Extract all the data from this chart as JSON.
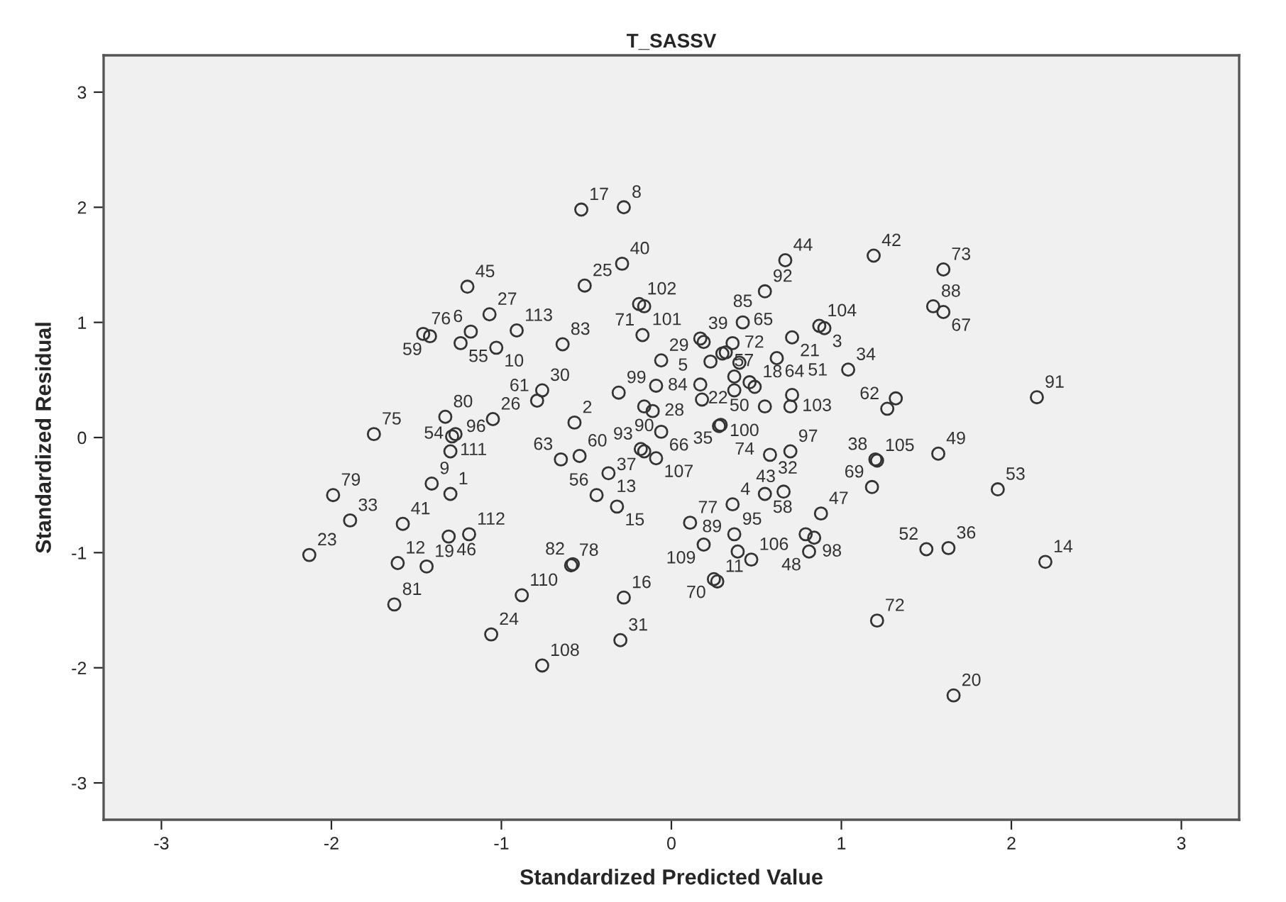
{
  "chart_data": {
    "type": "scatter",
    "title": "T_SASSV",
    "xlabel": "Standardized Predicted Value",
    "ylabel": "Standardized Residual",
    "xlim": [
      -3.34,
      3.34
    ],
    "ylim": [
      -3.32,
      3.32
    ],
    "xticks": [
      -3,
      -2,
      -1,
      0,
      1,
      2,
      3
    ],
    "yticks": [
      -3,
      -2,
      -1,
      0,
      1,
      2,
      3
    ],
    "grid": false,
    "legend": false,
    "marker": "circle",
    "series": [
      {
        "color": "#333333",
        "x": [
          -2.13,
          -1.99,
          -1.89,
          -1.75,
          -1.63,
          -1.61,
          -1.58,
          -1.46,
          -1.42,
          -1.44,
          -1.41,
          -1.33,
          -1.29,
          -1.27,
          -1.3,
          -1.3,
          -1.31,
          -1.24,
          -1.2,
          -1.19,
          -1.18,
          -1.07,
          -1.05,
          -1.06,
          -1.03,
          -0.91,
          -0.88,
          -0.76,
          -0.79,
          -0.65,
          -0.54,
          -0.37,
          -0.44,
          -0.32,
          -0.76,
          -0.64,
          -0.59,
          -0.58,
          -0.57,
          -0.53,
          -0.51,
          -0.31,
          -0.3,
          -0.29,
          -0.28,
          -0.28,
          -0.19,
          -0.16,
          -0.18,
          -0.16,
          -0.17,
          -0.16,
          -0.11,
          -0.09,
          -0.09,
          -0.06,
          -0.06,
          0.11,
          0.17,
          0.19,
          0.17,
          0.18,
          0.19,
          0.23,
          0.25,
          0.27,
          0.29,
          0.28,
          0.3,
          0.32,
          0.36,
          0.36,
          0.37,
          0.37,
          0.37,
          0.39,
          0.4,
          0.42,
          0.46,
          0.49,
          0.47,
          0.55,
          0.55,
          0.58,
          0.7,
          0.55,
          0.62,
          0.66,
          0.67,
          0.7,
          0.71,
          0.71,
          0.88,
          0.84,
          0.79,
          0.81,
          0.87,
          0.9,
          1.04,
          1.19,
          1.6,
          1.54,
          1.6,
          1.32,
          1.27,
          2.15,
          1.21,
          1.2,
          1.57,
          1.18,
          1.92,
          1.5,
          1.63,
          2.2,
          1.21,
          1.66
        ],
        "values": [
          -1.02,
          -0.5,
          -0.72,
          0.03,
          -1.45,
          -1.09,
          -0.75,
          0.9,
          0.88,
          -1.12,
          -0.4,
          0.18,
          0.01,
          0.03,
          -0.12,
          -0.49,
          -0.86,
          0.82,
          1.31,
          -0.84,
          0.92,
          1.07,
          0.16,
          -1.71,
          0.78,
          0.93,
          -1.37,
          0.41,
          0.32,
          -0.19,
          -0.16,
          -0.31,
          -0.5,
          -0.6,
          -1.98,
          0.81,
          -1.11,
          -1.1,
          0.13,
          1.98,
          1.32,
          0.39,
          -1.76,
          1.51,
          2.0,
          -1.39,
          1.16,
          1.14,
          -0.1,
          -0.12,
          0.89,
          0.27,
          0.23,
          0.45,
          -0.18,
          0.67,
          0.05,
          -0.74,
          0.86,
          0.83,
          0.46,
          0.33,
          -0.93,
          0.66,
          -1.23,
          -1.25,
          0.11,
          0.1,
          0.73,
          0.74,
          0.82,
          -0.58,
          -0.84,
          0.53,
          0.41,
          -0.99,
          0.65,
          1.0,
          0.48,
          0.44,
          -1.06,
          1.27,
          0.27,
          -0.15,
          -0.12,
          -0.49,
          0.69,
          -0.47,
          1.54,
          0.27,
          0.87,
          0.37,
          -0.66,
          -0.87,
          -0.84,
          -0.99,
          0.97,
          0.95,
          0.59,
          1.58,
          1.46,
          1.14,
          1.09,
          0.34,
          0.25,
          0.35,
          -0.2,
          -0.19,
          -0.14,
          -0.43,
          -0.45,
          -0.97,
          -0.96,
          -1.08,
          -1.59,
          -2.24
        ]
      }
    ],
    "annotations": [
      {
        "text": "23",
        "x": -2.13,
        "y": -1.02
      },
      {
        "text": "79",
        "x": -1.99,
        "y": -0.5
      },
      {
        "text": "33",
        "x": -1.89,
        "y": -0.72
      },
      {
        "text": "75",
        "x": -1.75,
        "y": 0.03
      },
      {
        "text": "81",
        "x": -1.63,
        "y": -1.45
      },
      {
        "text": "12",
        "x": -1.61,
        "y": -1.09
      },
      {
        "text": "41",
        "x": -1.58,
        "y": -0.75
      },
      {
        "text": "76",
        "x": -1.46,
        "y": 0.9
      },
      {
        "text": "59",
        "x": -1.42,
        "y": 0.88
      },
      {
        "text": "19",
        "x": -1.44,
        "y": -1.12
      },
      {
        "text": "9",
        "x": -1.41,
        "y": -0.4
      },
      {
        "text": "80",
        "x": -1.33,
        "y": 0.18
      },
      {
        "text": "111",
        "x": -1.29,
        "y": 0.01
      },
      {
        "text": "54",
        "x": -1.27,
        "y": 0.03
      },
      {
        "text": "96",
        "x": -1.3,
        "y": -0.12
      },
      {
        "text": "1",
        "x": -1.3,
        "y": -0.49
      },
      {
        "text": "46",
        "x": -1.31,
        "y": -0.86
      },
      {
        "text": "55",
        "x": -1.24,
        "y": 0.82
      },
      {
        "text": "45",
        "x": -1.2,
        "y": 1.31
      },
      {
        "text": "112",
        "x": -1.19,
        "y": -0.84
      },
      {
        "text": "6",
        "x": -1.18,
        "y": 0.92
      },
      {
        "text": "27",
        "x": -1.07,
        "y": 1.07
      },
      {
        "text": "26",
        "x": -1.05,
        "y": 0.16
      },
      {
        "text": "24",
        "x": -1.06,
        "y": -1.71
      },
      {
        "text": "10",
        "x": -1.03,
        "y": 0.78
      },
      {
        "text": "113",
        "x": -0.91,
        "y": 0.93
      },
      {
        "text": "110",
        "x": -0.88,
        "y": -1.37
      },
      {
        "text": "30",
        "x": -0.76,
        "y": 0.41
      },
      {
        "text": "61",
        "x": -0.79,
        "y": 0.32
      },
      {
        "text": "63",
        "x": -0.65,
        "y": -0.19
      },
      {
        "text": "60",
        "x": -0.54,
        "y": -0.16
      },
      {
        "text": "13",
        "x": -0.37,
        "y": -0.31
      },
      {
        "text": "56",
        "x": -0.44,
        "y": -0.5
      },
      {
        "text": "15",
        "x": -0.32,
        "y": -0.6
      },
      {
        "text": "108",
        "x": -0.76,
        "y": -1.98
      },
      {
        "text": "83",
        "x": -0.64,
        "y": 0.81
      },
      {
        "text": "78",
        "x": -0.59,
        "y": -1.11
      },
      {
        "text": "82",
        "x": -0.58,
        "y": -1.1
      },
      {
        "text": "2",
        "x": -0.57,
        "y": 0.13
      },
      {
        "text": "17",
        "x": -0.53,
        "y": 1.98
      },
      {
        "text": "25",
        "x": -0.51,
        "y": 1.32
      },
      {
        "text": "99",
        "x": -0.31,
        "y": 0.39
      },
      {
        "text": "31",
        "x": -0.3,
        "y": -1.76
      },
      {
        "text": "40",
        "x": -0.29,
        "y": 1.51
      },
      {
        "text": "8",
        "x": -0.28,
        "y": 2.0
      },
      {
        "text": "16",
        "x": -0.28,
        "y": -1.39
      },
      {
        "text": "102",
        "x": -0.19,
        "y": 1.16
      },
      {
        "text": "101",
        "x": -0.16,
        "y": 1.14
      },
      {
        "text": "93",
        "x": -0.18,
        "y": -0.1
      },
      {
        "text": "37",
        "x": -0.16,
        "y": -0.12
      },
      {
        "text": "71",
        "x": -0.17,
        "y": 0.89
      },
      {
        "text": "90",
        "x": -0.16,
        "y": 0.27
      },
      {
        "text": "28",
        "x": -0.11,
        "y": 0.23
      },
      {
        "text": "84",
        "x": -0.09,
        "y": 0.45
      },
      {
        "text": "107",
        "x": -0.09,
        "y": -0.18
      },
      {
        "text": "29",
        "x": -0.06,
        "y": 0.67
      },
      {
        "text": "66",
        "x": -0.06,
        "y": 0.05
      },
      {
        "text": "77",
        "x": 0.11,
        "y": -0.74
      },
      {
        "text": "39",
        "x": 0.17,
        "y": 0.86
      },
      {
        "text": "5",
        "x": 0.19,
        "y": 0.83
      },
      {
        "text": "22",
        "x": 0.17,
        "y": 0.46
      },
      {
        "text": "100",
        "x": 0.18,
        "y": 0.33
      },
      {
        "text": "109",
        "x": 0.19,
        "y": -0.93
      },
      {
        "text": "57",
        "x": 0.23,
        "y": 0.66
      },
      {
        "text": "70",
        "x": 0.25,
        "y": -1.23
      },
      {
        "text": "11",
        "x": 0.27,
        "y": -1.25
      },
      {
        "text": "35",
        "x": 0.29,
        "y": 0.11
      },
      {
        "text": "74",
        "x": 0.28,
        "y": 0.1
      },
      {
        "text": "65",
        "x": 0.32,
        "y": 0.74
      },
      {
        "text": "72",
        "x": 0.36,
        "y": 0.82
      },
      {
        "text": "4",
        "x": 0.36,
        "y": -0.58
      },
      {
        "text": "95",
        "x": 0.37,
        "y": -0.84
      },
      {
        "text": "89",
        "x": 0.39,
        "y": -0.99
      },
      {
        "text": "50",
        "x": 0.4,
        "y": 0.65
      },
      {
        "text": "85",
        "x": 0.42,
        "y": 1.0
      },
      {
        "text": "18",
        "x": 0.49,
        "y": 0.44
      },
      {
        "text": "106",
        "x": 0.47,
        "y": -1.06
      },
      {
        "text": "92",
        "x": 0.55,
        "y": 1.27
      },
      {
        "text": "32",
        "x": 0.58,
        "y": -0.15
      },
      {
        "text": "97",
        "x": 0.7,
        "y": -0.12
      },
      {
        "text": "58",
        "x": 0.55,
        "y": -0.49
      },
      {
        "text": "64",
        "x": 0.62,
        "y": 0.69
      },
      {
        "text": "43",
        "x": 0.66,
        "y": -0.47
      },
      {
        "text": "44",
        "x": 0.67,
        "y": 1.54
      },
      {
        "text": "103",
        "x": 0.7,
        "y": 0.27
      },
      {
        "text": "21",
        "x": 0.71,
        "y": 0.87
      },
      {
        "text": "51",
        "x": 0.71,
        "y": 0.37
      },
      {
        "text": "47",
        "x": 0.88,
        "y": -0.66
      },
      {
        "text": "98",
        "x": 0.84,
        "y": -0.87
      },
      {
        "text": "48",
        "x": 0.81,
        "y": -0.99
      },
      {
        "text": "104",
        "x": 0.87,
        "y": 0.97
      },
      {
        "text": "3",
        "x": 0.9,
        "y": 0.95
      },
      {
        "text": "34",
        "x": 1.04,
        "y": 0.59
      },
      {
        "text": "42",
        "x": 1.19,
        "y": 1.58
      },
      {
        "text": "73",
        "x": 1.6,
        "y": 1.46
      },
      {
        "text": "88",
        "x": 1.54,
        "y": 1.14
      },
      {
        "text": "67",
        "x": 1.6,
        "y": 1.09
      },
      {
        "text": "62",
        "x": 1.27,
        "y": 0.25
      },
      {
        "text": "91",
        "x": 2.15,
        "y": 0.35
      },
      {
        "text": "105",
        "x": 1.21,
        "y": -0.2
      },
      {
        "text": "38",
        "x": 1.2,
        "y": -0.19
      },
      {
        "text": "49",
        "x": 1.57,
        "y": -0.14
      },
      {
        "text": "69",
        "x": 1.18,
        "y": -0.43
      },
      {
        "text": "53",
        "x": 1.92,
        "y": -0.45
      },
      {
        "text": "52",
        "x": 1.5,
        "y": -0.97
      },
      {
        "text": "36",
        "x": 1.63,
        "y": -0.96
      },
      {
        "text": "14",
        "x": 2.2,
        "y": -1.08
      },
      {
        "text": "72",
        "x": 1.21,
        "y": -1.59
      },
      {
        "text": "20",
        "x": 1.66,
        "y": -2.24
      }
    ]
  }
}
